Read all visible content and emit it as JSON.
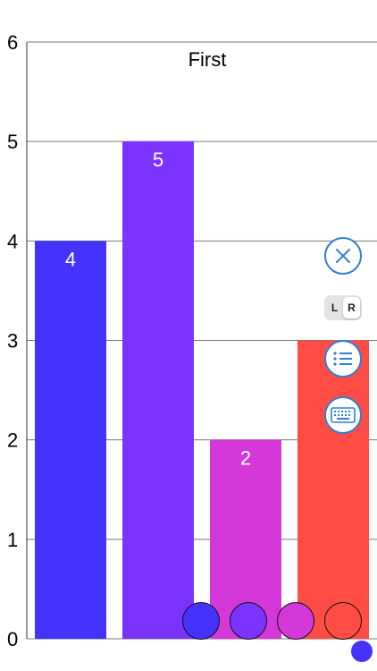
{
  "chart_data": {
    "type": "bar",
    "title": "First",
    "categories": [
      "",
      "",
      "",
      ""
    ],
    "values": [
      4,
      5,
      2,
      3
    ],
    "data_labels": [
      "4",
      "5",
      "2",
      "3"
    ],
    "colors": [
      "#4433ff",
      "#7b33ff",
      "#d438d9",
      "#ff4d45"
    ],
    "ylim": [
      0,
      6
    ],
    "yticks": [
      "0",
      "1",
      "2",
      "3",
      "4",
      "5",
      "6"
    ],
    "grid": true
  },
  "controls": {
    "close_icon": "close-icon",
    "hand_toggle": {
      "left": "L",
      "right": "R",
      "selected": "R"
    },
    "list_icon": "list-icon",
    "keyboard_icon": "keyboard-icon"
  },
  "swatches": [
    "#4433ff",
    "#7b33ff",
    "#d438d9",
    "#ff4d45"
  ],
  "page_indicator_color": "#4433ff"
}
